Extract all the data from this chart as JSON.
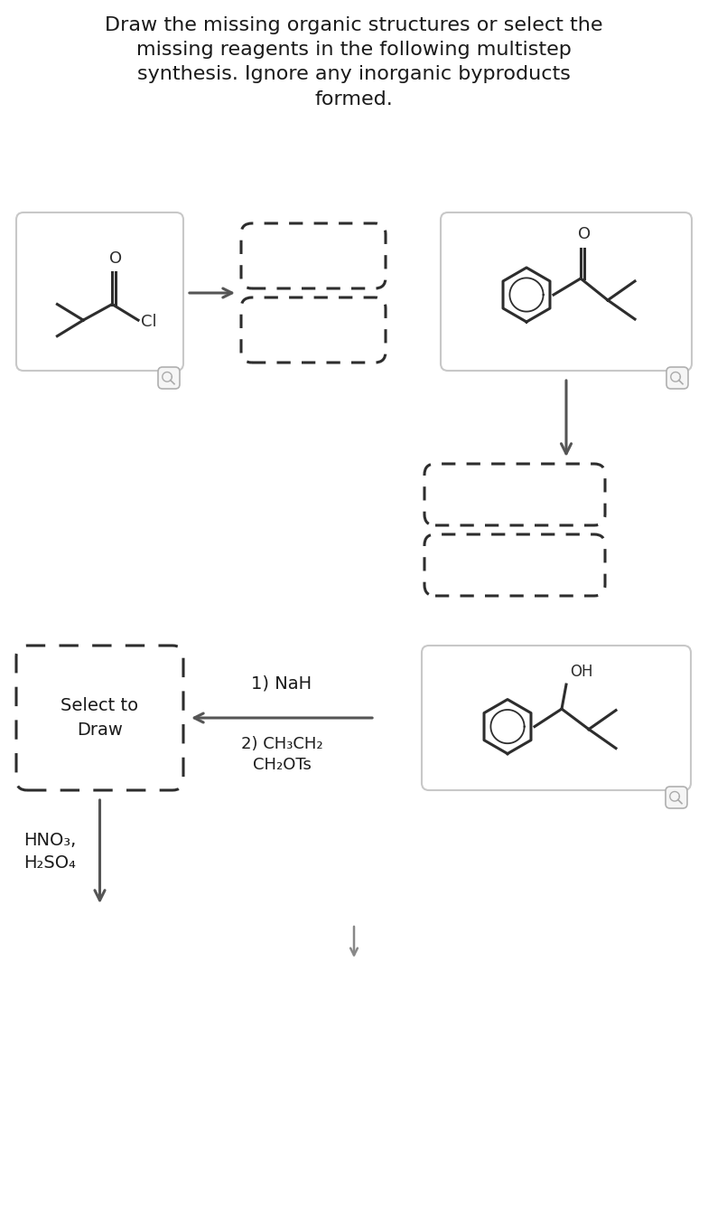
{
  "title_line1": "Draw the missing organic structures or select the",
  "title_line2": "missing reagents in the following multistep",
  "title_line3": "synthesis. Ignore any inorganic byproducts",
  "title_line4": "formed.",
  "bg_color": "#ffffff",
  "mol_color": "#2d2d2d",
  "arrow_color": "#555555",
  "text_color": "#1a1a1a",
  "box_border_solid": "#c8c8c8",
  "box_border_dashed": "#2d2d2d",
  "mag_border": "#b0b0b0",
  "mag_color": "#888888",
  "title_fs": 16,
  "label_fs": 14,
  "mol_lw": 2.2
}
